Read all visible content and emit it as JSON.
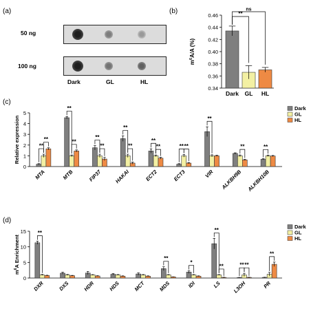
{
  "colors": {
    "dark": "#7f7f7f",
    "gl": "#f3f0a3",
    "hl": "#ee8a44",
    "bar_edge": "#333333"
  },
  "panel_letters": {
    "a": "(a)",
    "b": "(b)",
    "c": "(c)",
    "d": "(d)"
  },
  "blot": {
    "rows": [
      {
        "label": "50 ng",
        "intensities": [
          0.95,
          0.45,
          0.3
        ]
      },
      {
        "label": "100 ng",
        "intensities": [
          0.95,
          0.5,
          0.6
        ]
      }
    ],
    "columns": [
      "Dark",
      "GL",
      "HL"
    ]
  },
  "chart_data": [
    {
      "id": "b",
      "type": "bar",
      "ylabel": "m6A/A (%)",
      "ylim": [
        0.34,
        0.46
      ],
      "yticks": [
        "0.34",
        "0.36",
        "0.38",
        "0.40",
        "0.42",
        "0.44",
        "0.46"
      ],
      "categories": [
        "Dark",
        "GL",
        "HL"
      ],
      "values": [
        0.434,
        0.366,
        0.37
      ],
      "errors": [
        0.008,
        0.011,
        0.004
      ],
      "significance": [
        {
          "a": 0,
          "b": 1,
          "label": "**"
        },
        {
          "a": 0,
          "b": 2,
          "label": "ns"
        }
      ]
    },
    {
      "id": "c",
      "type": "bar",
      "ylabel": "Relative expression",
      "ylim": [
        0,
        5
      ],
      "yticks": [
        "0",
        "1",
        "2",
        "3",
        "4",
        "5"
      ],
      "categories": [
        "MTA",
        "MTB",
        "FIP37",
        "HAKAI",
        "ECT2",
        "ECT3",
        "VIR",
        "ALKBH9B",
        "ALKBH10B"
      ],
      "series": [
        {
          "name": "Dark",
          "values": [
            0.22,
            4.55,
            1.75,
            2.6,
            1.45,
            0.22,
            3.25,
            1.22,
            0.68
          ],
          "errors": [
            0.05,
            0.1,
            0.2,
            0.25,
            0.2,
            0.05,
            0.45,
            0.06,
            0.05
          ]
        },
        {
          "name": "GL",
          "values": [
            1.0,
            1.0,
            1.0,
            1.0,
            1.0,
            1.0,
            1.0,
            1.0,
            1.0
          ],
          "errors": [
            0.15,
            0.08,
            0.15,
            0.15,
            0.08,
            0.12,
            0.1,
            0.08,
            0.07
          ]
        },
        {
          "name": "HL",
          "values": [
            1.65,
            1.45,
            0.7,
            0.32,
            0.78,
            0.32,
            1.0,
            0.62,
            0.98
          ],
          "errors": [
            0.1,
            0.1,
            0.15,
            0.1,
            0.08,
            0.05,
            0.05,
            0.05,
            0.05
          ]
        }
      ],
      "legend": [
        "Dark",
        "GL",
        "HL"
      ],
      "significance": [
        {
          "cat": 0,
          "a": 0,
          "b": 1,
          "label": "**"
        },
        {
          "cat": 0,
          "a": 1,
          "b": 2,
          "label": "**"
        },
        {
          "cat": 1,
          "a": 0,
          "b": 1,
          "label": "**"
        },
        {
          "cat": 1,
          "a": 1,
          "b": 2,
          "label": "**"
        },
        {
          "cat": 2,
          "a": 0,
          "b": 1,
          "label": "**"
        },
        {
          "cat": 2,
          "a": 1,
          "b": 2,
          "label": "**"
        },
        {
          "cat": 3,
          "a": 0,
          "b": 1,
          "label": "**"
        },
        {
          "cat": 3,
          "a": 1,
          "b": 2,
          "label": "**"
        },
        {
          "cat": 4,
          "a": 0,
          "b": 1,
          "label": "**"
        },
        {
          "cat": 4,
          "a": 1,
          "b": 2,
          "label": "**"
        },
        {
          "cat": 5,
          "a": 0,
          "b": 1,
          "label": "**"
        },
        {
          "cat": 5,
          "a": 1,
          "b": 2,
          "label": "**"
        },
        {
          "cat": 6,
          "a": 0,
          "b": 1,
          "label": "**"
        },
        {
          "cat": 7,
          "a": 1,
          "b": 2,
          "label": "**"
        },
        {
          "cat": 8,
          "a": 0,
          "b": 1,
          "label": "**"
        }
      ]
    },
    {
      "id": "d",
      "type": "bar",
      "ylabel": "m6A Enrichment",
      "ylim": [
        0,
        15
      ],
      "yticks": [
        "0",
        "5",
        "10",
        "15"
      ],
      "categories": [
        "DXR",
        "DXS",
        "HDR",
        "HDS",
        "MCT",
        "MDS",
        "IDI",
        "LS",
        "L3OH",
        "PR"
      ],
      "series": [
        {
          "name": "Dark",
          "values": [
            11.3,
            1.55,
            1.6,
            1.2,
            1.3,
            3.0,
            1.9,
            11.0,
            0.15,
            0.2
          ],
          "errors": [
            0.5,
            0.3,
            0.5,
            0.2,
            0.35,
            0.6,
            0.4,
            1.7,
            0.05,
            0.05
          ]
        },
        {
          "name": "GL",
          "values": [
            1.0,
            1.0,
            1.0,
            1.0,
            1.0,
            1.0,
            1.0,
            1.0,
            1.0,
            1.2
          ],
          "errors": [
            0.15,
            0.15,
            0.1,
            0.12,
            0.12,
            0.12,
            0.12,
            0.12,
            0.5,
            0.6
          ]
        },
        {
          "name": "HL",
          "values": [
            0.8,
            0.75,
            0.65,
            0.6,
            0.6,
            0.35,
            0.6,
            0.2,
            0.2,
            4.4
          ],
          "errors": [
            0.1,
            0.1,
            0.1,
            0.1,
            0.1,
            0.05,
            0.1,
            0.05,
            0.05,
            0.7
          ]
        }
      ],
      "legend": [
        "Dark",
        "GL",
        "HL"
      ],
      "significance": [
        {
          "cat": 0,
          "a": 0,
          "b": 1,
          "label": "**"
        },
        {
          "cat": 5,
          "a": 0,
          "b": 1,
          "label": "**"
        },
        {
          "cat": 6,
          "a": 0,
          "b": 1,
          "label": "*"
        },
        {
          "cat": 7,
          "a": 0,
          "b": 1,
          "label": "**"
        },
        {
          "cat": 7,
          "a": 1,
          "b": 2,
          "label": "**"
        },
        {
          "cat": 8,
          "a": 0,
          "b": 1,
          "label": "**"
        },
        {
          "cat": 8,
          "a": 1,
          "b": 2,
          "label": "**"
        },
        {
          "cat": 9,
          "a": 1,
          "b": 2,
          "label": "**"
        }
      ]
    }
  ]
}
